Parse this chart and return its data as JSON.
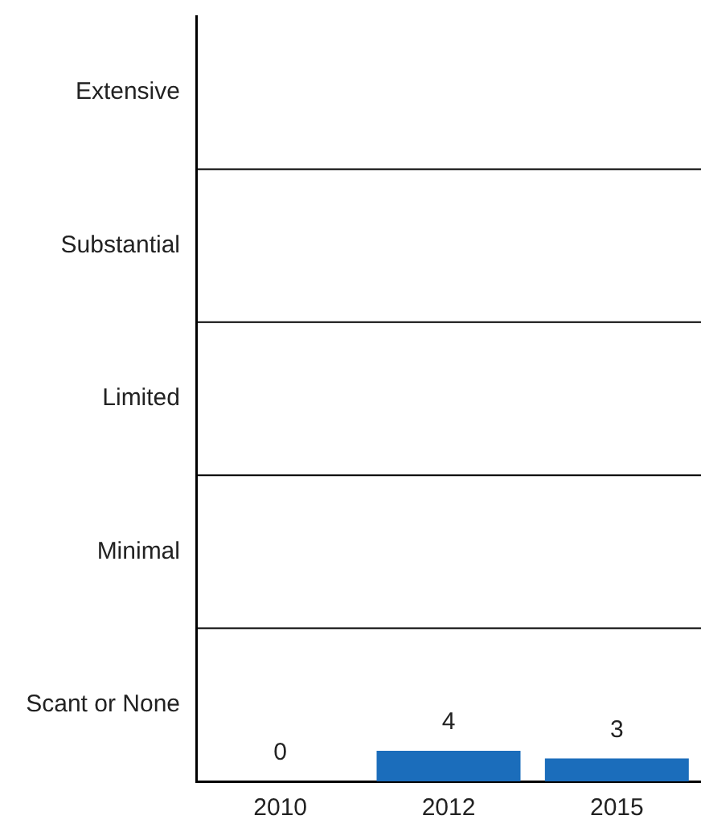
{
  "chart_data": {
    "type": "bar",
    "categories": [
      "2010",
      "2012",
      "2015"
    ],
    "values": [
      0,
      4,
      3
    ],
    "color": "#1b6dbb",
    "ylim": [
      0,
      100
    ],
    "ref_lines": [
      {
        "axis": "y",
        "value": 20,
        "color": "#000000"
      },
      {
        "axis": "y",
        "value": 40,
        "color": "#000000"
      },
      {
        "axis": "y",
        "value": 60,
        "color": "#000000"
      },
      {
        "axis": "y",
        "value": 80,
        "color": "#000000"
      }
    ],
    "annotations": [
      "Extensive",
      "Substantial",
      "Limited",
      "Minimal",
      "Scant or None"
    ],
    "data_labels": true
  }
}
